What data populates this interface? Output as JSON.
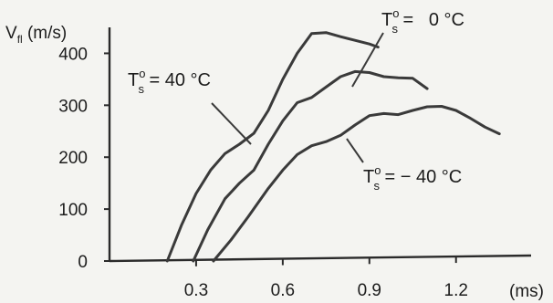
{
  "chart_data": {
    "type": "line",
    "ylabel_main": "V",
    "ylabel_sub": "fl",
    "ylabel_unit": " (m/s)",
    "xlabel": "(ms)",
    "xlim": [
      0,
      1.46
    ],
    "ylim": [
      0,
      450
    ],
    "xticks": [
      {
        "value": 0.3,
        "label": "0.3"
      },
      {
        "value": 0.6,
        "label": "0.6"
      },
      {
        "value": 0.9,
        "label": "0.9"
      },
      {
        "value": 1.2,
        "label": "1.2"
      }
    ],
    "yticks": [
      {
        "value": 0,
        "label": "0"
      },
      {
        "value": 100,
        "label": "100"
      },
      {
        "value": 200,
        "label": "200"
      },
      {
        "value": 300,
        "label": "300"
      },
      {
        "value": 400,
        "label": "400"
      }
    ],
    "series": [
      {
        "label_prefix": "T",
        "label_sup": "o",
        "label_sub": "s",
        "label_value": " = 40 °C",
        "points": [
          [
            0.2,
            0
          ],
          [
            0.25,
            70
          ],
          [
            0.3,
            130
          ],
          [
            0.35,
            175
          ],
          [
            0.4,
            207
          ],
          [
            0.45,
            225
          ],
          [
            0.5,
            246
          ],
          [
            0.55,
            290
          ],
          [
            0.6,
            350
          ],
          [
            0.65,
            400
          ],
          [
            0.7,
            438
          ],
          [
            0.75,
            440
          ],
          [
            0.8,
            432
          ],
          [
            0.85,
            425
          ],
          [
            0.9,
            418
          ],
          [
            0.93,
            412
          ]
        ]
      },
      {
        "label_prefix": "T",
        "label_sup": "o",
        "label_sub": "s",
        "label_value": " =   0 °C",
        "points": [
          [
            0.29,
            0
          ],
          [
            0.34,
            60
          ],
          [
            0.4,
            120
          ],
          [
            0.45,
            150
          ],
          [
            0.5,
            175
          ],
          [
            0.55,
            225
          ],
          [
            0.6,
            270
          ],
          [
            0.65,
            305
          ],
          [
            0.7,
            315
          ],
          [
            0.75,
            335
          ],
          [
            0.8,
            355
          ],
          [
            0.85,
            365
          ],
          [
            0.9,
            363
          ],
          [
            0.95,
            355
          ],
          [
            1.0,
            353
          ],
          [
            1.05,
            352
          ],
          [
            1.1,
            332
          ]
        ]
      },
      {
        "label_prefix": "T",
        "label_sup": "o",
        "label_sub": "s",
        "label_value": " = − 40 °C",
        "points": [
          [
            0.36,
            0
          ],
          [
            0.42,
            40
          ],
          [
            0.48,
            85
          ],
          [
            0.55,
            140
          ],
          [
            0.6,
            175
          ],
          [
            0.65,
            205
          ],
          [
            0.7,
            222
          ],
          [
            0.75,
            230
          ],
          [
            0.8,
            242
          ],
          [
            0.85,
            262
          ],
          [
            0.9,
            280
          ],
          [
            0.95,
            284
          ],
          [
            1.0,
            282
          ],
          [
            1.05,
            290
          ],
          [
            1.1,
            297
          ],
          [
            1.15,
            298
          ],
          [
            1.2,
            290
          ],
          [
            1.25,
            275
          ],
          [
            1.3,
            258
          ],
          [
            1.35,
            245
          ]
        ]
      }
    ]
  }
}
